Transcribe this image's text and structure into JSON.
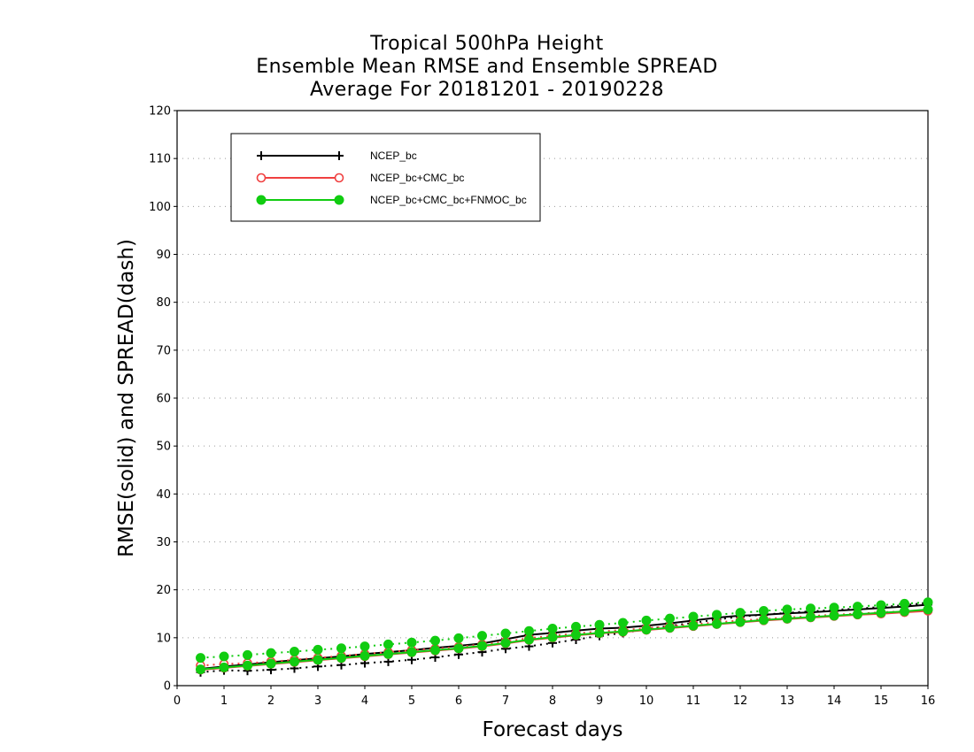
{
  "chart_data": {
    "type": "line",
    "title_lines": [
      "Tropical 500hPa Height",
      "Ensemble Mean RMSE and Ensemble SPREAD",
      "Average For 20181201 - 20190228"
    ],
    "xlabel": "Forecast days",
    "ylabel": "RMSE(solid) and SPREAD(dash)",
    "xlim": [
      0,
      16
    ],
    "ylim": [
      0,
      120
    ],
    "xticks": [
      0,
      1,
      2,
      3,
      4,
      5,
      6,
      7,
      8,
      9,
      10,
      11,
      12,
      13,
      14,
      15,
      16
    ],
    "yticks": [
      0,
      10,
      20,
      30,
      40,
      50,
      60,
      70,
      80,
      90,
      100,
      110,
      120
    ],
    "grid": "horizontal dotted",
    "legend_position": "top-left",
    "x": [
      0.5,
      1,
      1.5,
      2,
      2.5,
      3,
      3.5,
      4,
      4.5,
      5,
      5.5,
      6,
      6.5,
      7,
      7.5,
      8,
      8.5,
      9,
      9.5,
      10,
      10.5,
      11,
      11.5,
      12,
      12.5,
      13,
      13.5,
      14,
      14.5,
      15,
      15.5,
      16
    ],
    "series": [
      {
        "name": "NCEP_bc",
        "color": "#000000",
        "marker": "plus",
        "rmse": [
          3.5,
          4.0,
          4.4,
          4.9,
          5.3,
          5.7,
          6.1,
          6.6,
          7.0,
          7.4,
          7.9,
          8.3,
          8.8,
          9.7,
          10.6,
          11.0,
          11.5,
          11.9,
          12.1,
          12.5,
          13.0,
          13.6,
          14.2,
          14.6,
          14.8,
          15.1,
          15.3,
          15.6,
          15.9,
          16.2,
          16.5,
          16.9
        ],
        "spread": [
          2.8,
          3.2,
          3.1,
          3.3,
          3.6,
          4.0,
          4.3,
          4.7,
          5.0,
          5.4,
          5.9,
          6.5,
          7.0,
          7.7,
          8.2,
          8.9,
          9.6,
          10.4,
          11.0,
          11.8,
          12.5,
          13.1,
          13.8,
          14.4,
          14.8,
          15.2,
          15.5,
          15.8,
          16.1,
          16.4,
          16.8,
          17.3
        ]
      },
      {
        "name": "NCEP_bc+CMC_bc",
        "color": "#f04040",
        "marker": "open-circle",
        "rmse": [
          3.3,
          3.7,
          4.1,
          4.5,
          4.9,
          5.3,
          5.7,
          6.1,
          6.5,
          6.9,
          7.3,
          7.7,
          8.2,
          8.8,
          9.5,
          10.0,
          10.5,
          10.9,
          11.2,
          11.6,
          12.0,
          12.4,
          12.8,
          13.2,
          13.6,
          13.9,
          14.2,
          14.5,
          14.8,
          15.0,
          15.3,
          15.6
        ],
        "spread": [
          4.2,
          4.5,
          4.7,
          5.0,
          5.4,
          5.8,
          6.2,
          6.6,
          7.0,
          7.4,
          7.7,
          8.1,
          8.6,
          9.2,
          9.9,
          10.4,
          10.9,
          11.3,
          11.6,
          12.0,
          12.4,
          12.8,
          13.2,
          13.6,
          13.9,
          14.2,
          14.5,
          14.8,
          15.0,
          15.3,
          15.5,
          15.8
        ]
      },
      {
        "name": "NCEP_bc+CMC_bc+FNMOC_bc",
        "color": "#11cc11",
        "marker": "filled-circle",
        "rmse": [
          3.4,
          3.8,
          4.2,
          4.6,
          5.0,
          5.4,
          5.8,
          6.2,
          6.6,
          7.0,
          7.4,
          7.8,
          8.3,
          8.9,
          9.6,
          10.1,
          10.6,
          11.0,
          11.3,
          11.7,
          12.1,
          12.5,
          12.9,
          13.3,
          13.7,
          14.0,
          14.3,
          14.6,
          14.9,
          15.2,
          15.5,
          15.9
        ],
        "spread": [
          5.8,
          6.1,
          6.4,
          6.8,
          7.1,
          7.5,
          7.8,
          8.2,
          8.6,
          9.0,
          9.4,
          9.9,
          10.4,
          10.9,
          11.4,
          11.9,
          12.3,
          12.7,
          13.1,
          13.6,
          14.0,
          14.4,
          14.8,
          15.2,
          15.6,
          15.9,
          16.1,
          16.3,
          16.5,
          16.8,
          17.1,
          17.4
        ]
      }
    ]
  }
}
